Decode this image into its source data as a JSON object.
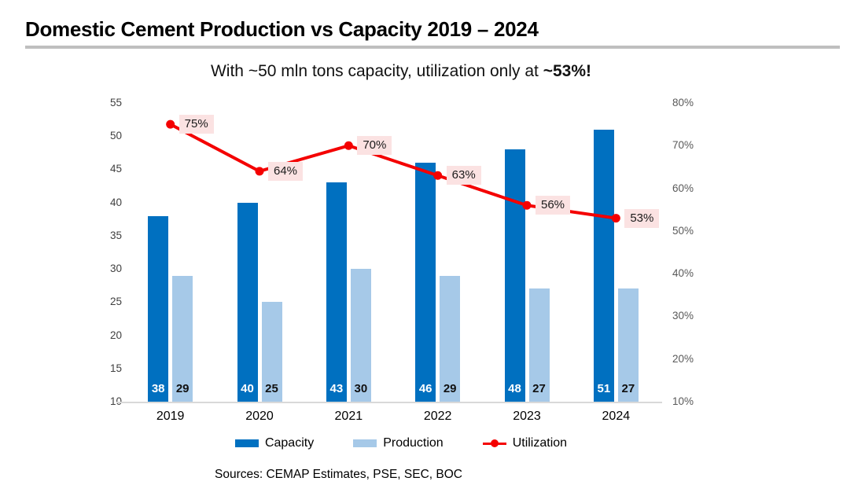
{
  "title": "Domestic Cement Production vs Capacity 2019 – 2024",
  "subtitle_prefix": "With ~50 mln tons capacity, utilization only at ",
  "subtitle_emphasis": "~53%!",
  "sources": "Sources: CEMAP Estimates, PSE, SEC, BOC",
  "colors": {
    "capacity_blue": "#0070C0",
    "production_blue": "#A6C9E8",
    "utilization_red": "#F40000",
    "chip_pink": "#FBE2E2",
    "axis_line_gray": "#D9D9D9",
    "divider_gray": "#BFBFBF"
  },
  "chart_data": {
    "type": "bar",
    "subtype": "grouped-bar-with-line-dual-axis",
    "categories": [
      "2019",
      "2020",
      "2021",
      "2022",
      "2023",
      "2024"
    ],
    "series": [
      {
        "name": "Capacity",
        "type": "bar",
        "axis": "left",
        "color": "#0070C0",
        "label_color": "#FFFFFF",
        "values": [
          38,
          40,
          43,
          46,
          48,
          51
        ]
      },
      {
        "name": "Production",
        "type": "bar",
        "axis": "left",
        "color": "#A6C9E8",
        "label_color": "#111111",
        "values": [
          29,
          25,
          30,
          29,
          27,
          27
        ]
      },
      {
        "name": "Utilization",
        "type": "line",
        "axis": "right",
        "color": "#F40000",
        "label_bg": "#FBE2E2",
        "values": [
          75,
          64,
          70,
          63,
          56,
          53
        ],
        "labels": [
          "75%",
          "64%",
          "70%",
          "63%",
          "56%",
          "53%"
        ]
      }
    ],
    "left_axis": {
      "min": 10,
      "max": 55,
      "step": 5,
      "suffix": ""
    },
    "right_axis": {
      "min": 10,
      "max": 80,
      "step": 10,
      "suffix": "%"
    },
    "grid": false,
    "legend_position": "bottom",
    "title": "With ~50 mln tons capacity, utilization only at ~53%!"
  }
}
